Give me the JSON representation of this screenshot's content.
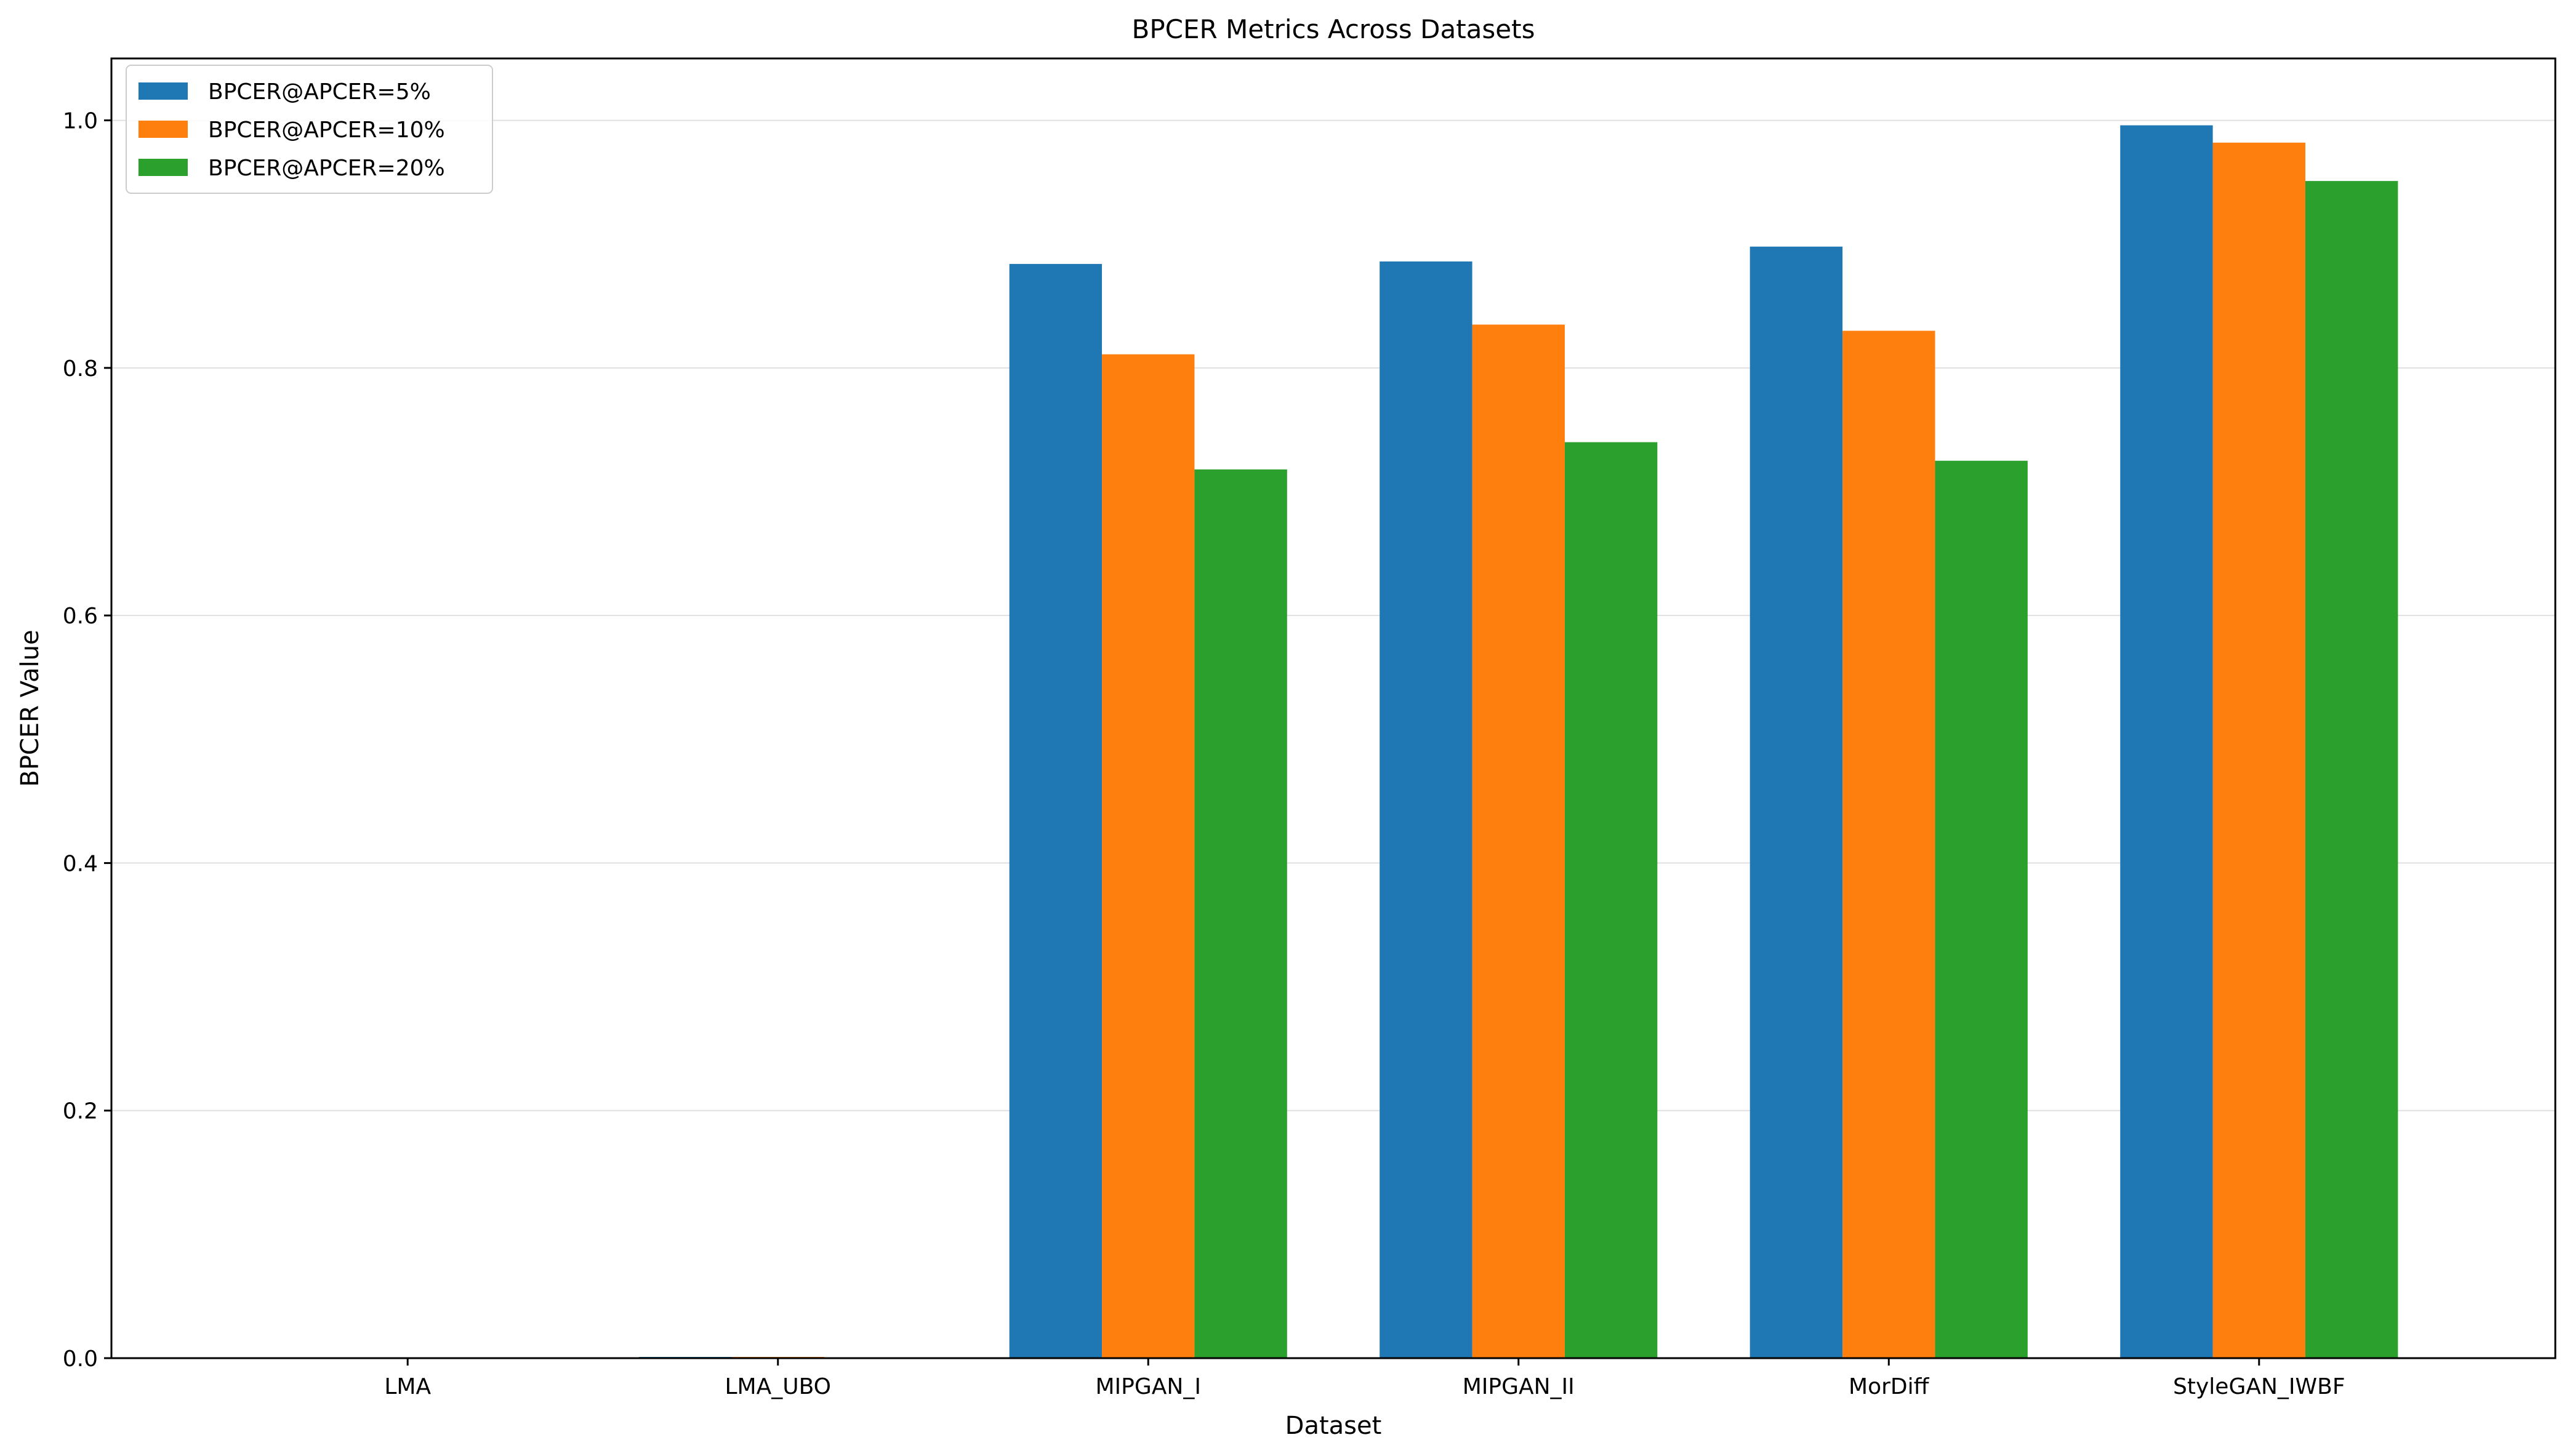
{
  "chart_data": {
    "type": "bar",
    "title": "BPCER Metrics Across Datasets",
    "xlabel": "Dataset",
    "ylabel": "BPCER Value",
    "categories": [
      "LMA",
      "LMA_UBO",
      "MIPGAN_I",
      "MIPGAN_II",
      "MorDiff",
      "StyleGAN_IWBF"
    ],
    "series": [
      {
        "name": "BPCER@APCER=5%",
        "color": "#1f77b4",
        "values": [
          0.0,
          0.001,
          0.884,
          0.886,
          0.898,
          0.996
        ]
      },
      {
        "name": "BPCER@APCER=10%",
        "color": "#ff7f0e",
        "values": [
          0.0,
          0.001,
          0.811,
          0.835,
          0.83,
          0.982
        ]
      },
      {
        "name": "BPCER@APCER=20%",
        "color": "#2ca02c",
        "values": [
          0.0,
          0.0,
          0.718,
          0.74,
          0.725,
          0.951
        ]
      }
    ],
    "ylim": [
      0.0,
      1.05
    ],
    "yticks": [
      "0.0",
      "0.2",
      "0.4",
      "0.6",
      "0.8",
      "1.0"
    ],
    "grid": "y-axis",
    "legend_position": "top-left"
  }
}
